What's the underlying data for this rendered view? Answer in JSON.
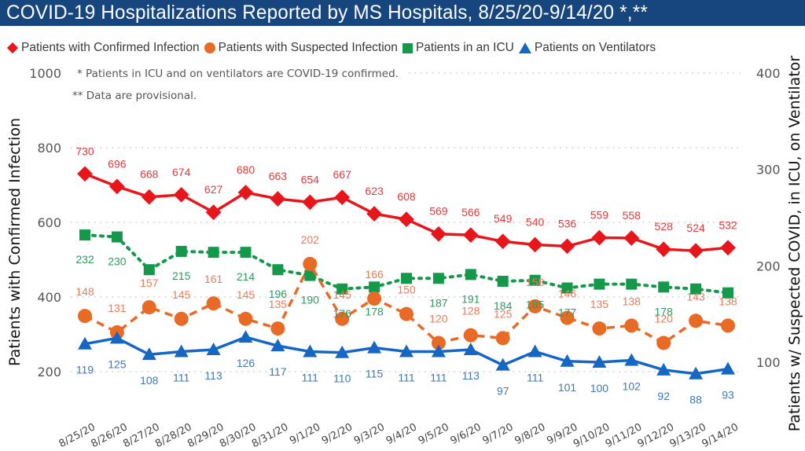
{
  "title": "COVID-19 Hospitalizations Reported by MS Hospitals, 8/25/20-9/14/20 *,**",
  "legend": [
    {
      "label": "Patients with Confirmed Infection",
      "symbol": "diamond",
      "color": "#e8151b"
    },
    {
      "label": "Patients with Suspected Infection",
      "symbol": "circle",
      "color": "#e86a25"
    },
    {
      "label": "Patients in an ICU",
      "symbol": "square",
      "color": "#14984a"
    },
    {
      "label": "Patients on Ventilators",
      "symbol": "triangle",
      "color": "#1667c4"
    }
  ],
  "notes": [
    "* Patients in ICU and on ventilators are COVID-19 confirmed.",
    "** Data are provisional."
  ],
  "chart_data": {
    "type": "line",
    "title": "COVID-19 Hospitalizations Reported by MS Hospitals, 8/25/20-9/14/20 *,**",
    "xlabel": "",
    "ylabel": "Patients with Confirmed Infection",
    "y2label": "Patients w/ Suspected COVID, in ICU, on Ventilator",
    "ylim": [
      200,
      1000
    ],
    "y2lim": [
      100,
      400
    ],
    "yticks": [
      "1000",
      "800",
      "600",
      "400",
      "200"
    ],
    "y2ticks": [
      "400",
      "300",
      "200",
      "100"
    ],
    "ytick_values": [
      1000,
      800,
      600,
      400,
      200
    ],
    "y2tick_values": [
      400,
      300,
      200,
      100
    ],
    "grid": true,
    "legend_position": "top",
    "categories": [
      "8/25/20",
      "8/26/20",
      "8/27/20",
      "8/28/20",
      "8/29/20",
      "8/30/20",
      "8/31/20",
      "9/1/20",
      "9/2/20",
      "9/3/20",
      "9/4/20",
      "9/5/20",
      "9/6/20",
      "9/7/20",
      "9/8/20",
      "9/9/20",
      "9/10/20",
      "9/11/20",
      "9/12/20",
      "9/13/20",
      "9/14/20"
    ],
    "series": [
      {
        "name": "Patients with Confirmed Infection",
        "axis": "left",
        "color": "#e8151b",
        "marker": "diamond",
        "dash": "solid",
        "values": [
          730,
          696,
          668,
          674,
          627,
          680,
          663,
          654,
          667,
          623,
          608,
          569,
          566,
          549,
          540,
          536,
          559,
          558,
          528,
          524,
          532
        ]
      },
      {
        "name": "Patients with Suspected Infection",
        "axis": "right",
        "color": "#e86a25",
        "marker": "circle",
        "dash": "dashed",
        "values": [
          148,
          131,
          157,
          145,
          161,
          145,
          135,
          202,
          145,
          166,
          150,
          120,
          128,
          125,
          158,
          146,
          135,
          138,
          120,
          143,
          138
        ]
      },
      {
        "name": "Patients in an ICU",
        "axis": "right",
        "color": "#14984a",
        "marker": "square",
        "dash": "dotted",
        "values": [
          232,
          230,
          196,
          215,
          214,
          214,
          196,
          190,
          176,
          178,
          187,
          187,
          191,
          184,
          185,
          177,
          181,
          181,
          178,
          176,
          172
        ]
      },
      {
        "name": "Patients on Ventilators",
        "axis": "right",
        "color": "#1667c4",
        "marker": "triangle",
        "dash": "solid",
        "values": [
          119,
          125,
          108,
          111,
          113,
          126,
          117,
          111,
          110,
          115,
          111,
          111,
          113,
          97,
          111,
          101,
          100,
          102,
          92,
          88,
          93
        ]
      }
    ],
    "data_labels": {
      "Patients with Confirmed Infection": [
        "730",
        "696",
        "668",
        "674",
        "627",
        "680",
        "663",
        "654",
        "667",
        "623",
        "608",
        "569",
        "566",
        "549",
        "540",
        "536",
        "559",
        "558",
        "528",
        "524",
        "532"
      ],
      "Patients with Suspected Infection": [
        "148",
        "131",
        "157",
        "145",
        "161",
        "145",
        "135",
        "202",
        "145",
        "166",
        "150",
        "120",
        "128",
        "125",
        "158",
        "146",
        "135",
        "138",
        "120",
        "143",
        "138"
      ],
      "Patients in an ICU": [
        "232",
        "230",
        "",
        "215",
        "",
        "214",
        "196",
        "190",
        "176",
        "178",
        "",
        "187",
        "191",
        "184",
        "185",
        "177",
        "",
        "",
        "178",
        "",
        ""
      ],
      "Patients on Ventilators": [
        "119",
        "125",
        "108",
        "111",
        "113",
        "126",
        "117",
        "111",
        "110",
        "115",
        "111",
        "111",
        "113",
        "97",
        "111",
        "101",
        "100",
        "102",
        "92",
        "88",
        "93"
      ]
    }
  }
}
